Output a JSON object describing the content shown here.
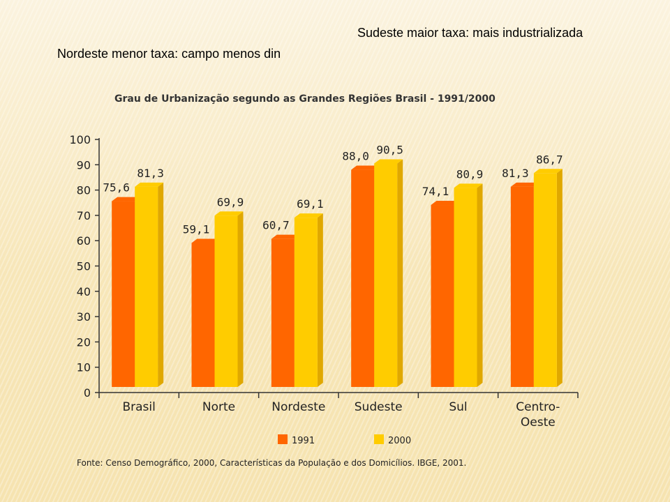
{
  "notes": {
    "top": "Sudeste maior taxa: mais industrializada",
    "second": "Nordeste menor taxa: campo menos din"
  },
  "chart_data": {
    "type": "bar",
    "title": "Grau de Urbanização segundo as Grandes Regiões Brasil - 1991/2000",
    "categories": [
      [
        "Brasil"
      ],
      [
        "Norte"
      ],
      [
        "Nordeste"
      ],
      [
        "Sudeste"
      ],
      [
        "Sul"
      ],
      [
        "Centro-",
        "Oeste"
      ]
    ],
    "series": [
      {
        "name": "1991",
        "color": "#ff6600",
        "side_color": "#cc4a00",
        "values": [
          75.6,
          59.1,
          60.7,
          88.0,
          74.1,
          81.3
        ],
        "labels": [
          "75,6",
          "59,1",
          "60,7",
          "88,0",
          "74,1",
          "81,3"
        ]
      },
      {
        "name": "2000",
        "color": "#ffcc00",
        "side_color": "#e0a800",
        "values": [
          81.3,
          69.9,
          69.1,
          90.5,
          80.9,
          86.7
        ],
        "labels": [
          "81,3",
          "69,9",
          "69,1",
          "90,5",
          "80,9",
          "86,7"
        ]
      }
    ],
    "ylim": [
      0,
      100
    ],
    "yticks": [
      0,
      10,
      20,
      30,
      40,
      50,
      60,
      70,
      80,
      90,
      100
    ],
    "grid": false,
    "legend_position": "bottom",
    "source": "Fonte: Censo Demográfico, 2000, Características da População e dos Domicílios. IBGE, 2001."
  }
}
